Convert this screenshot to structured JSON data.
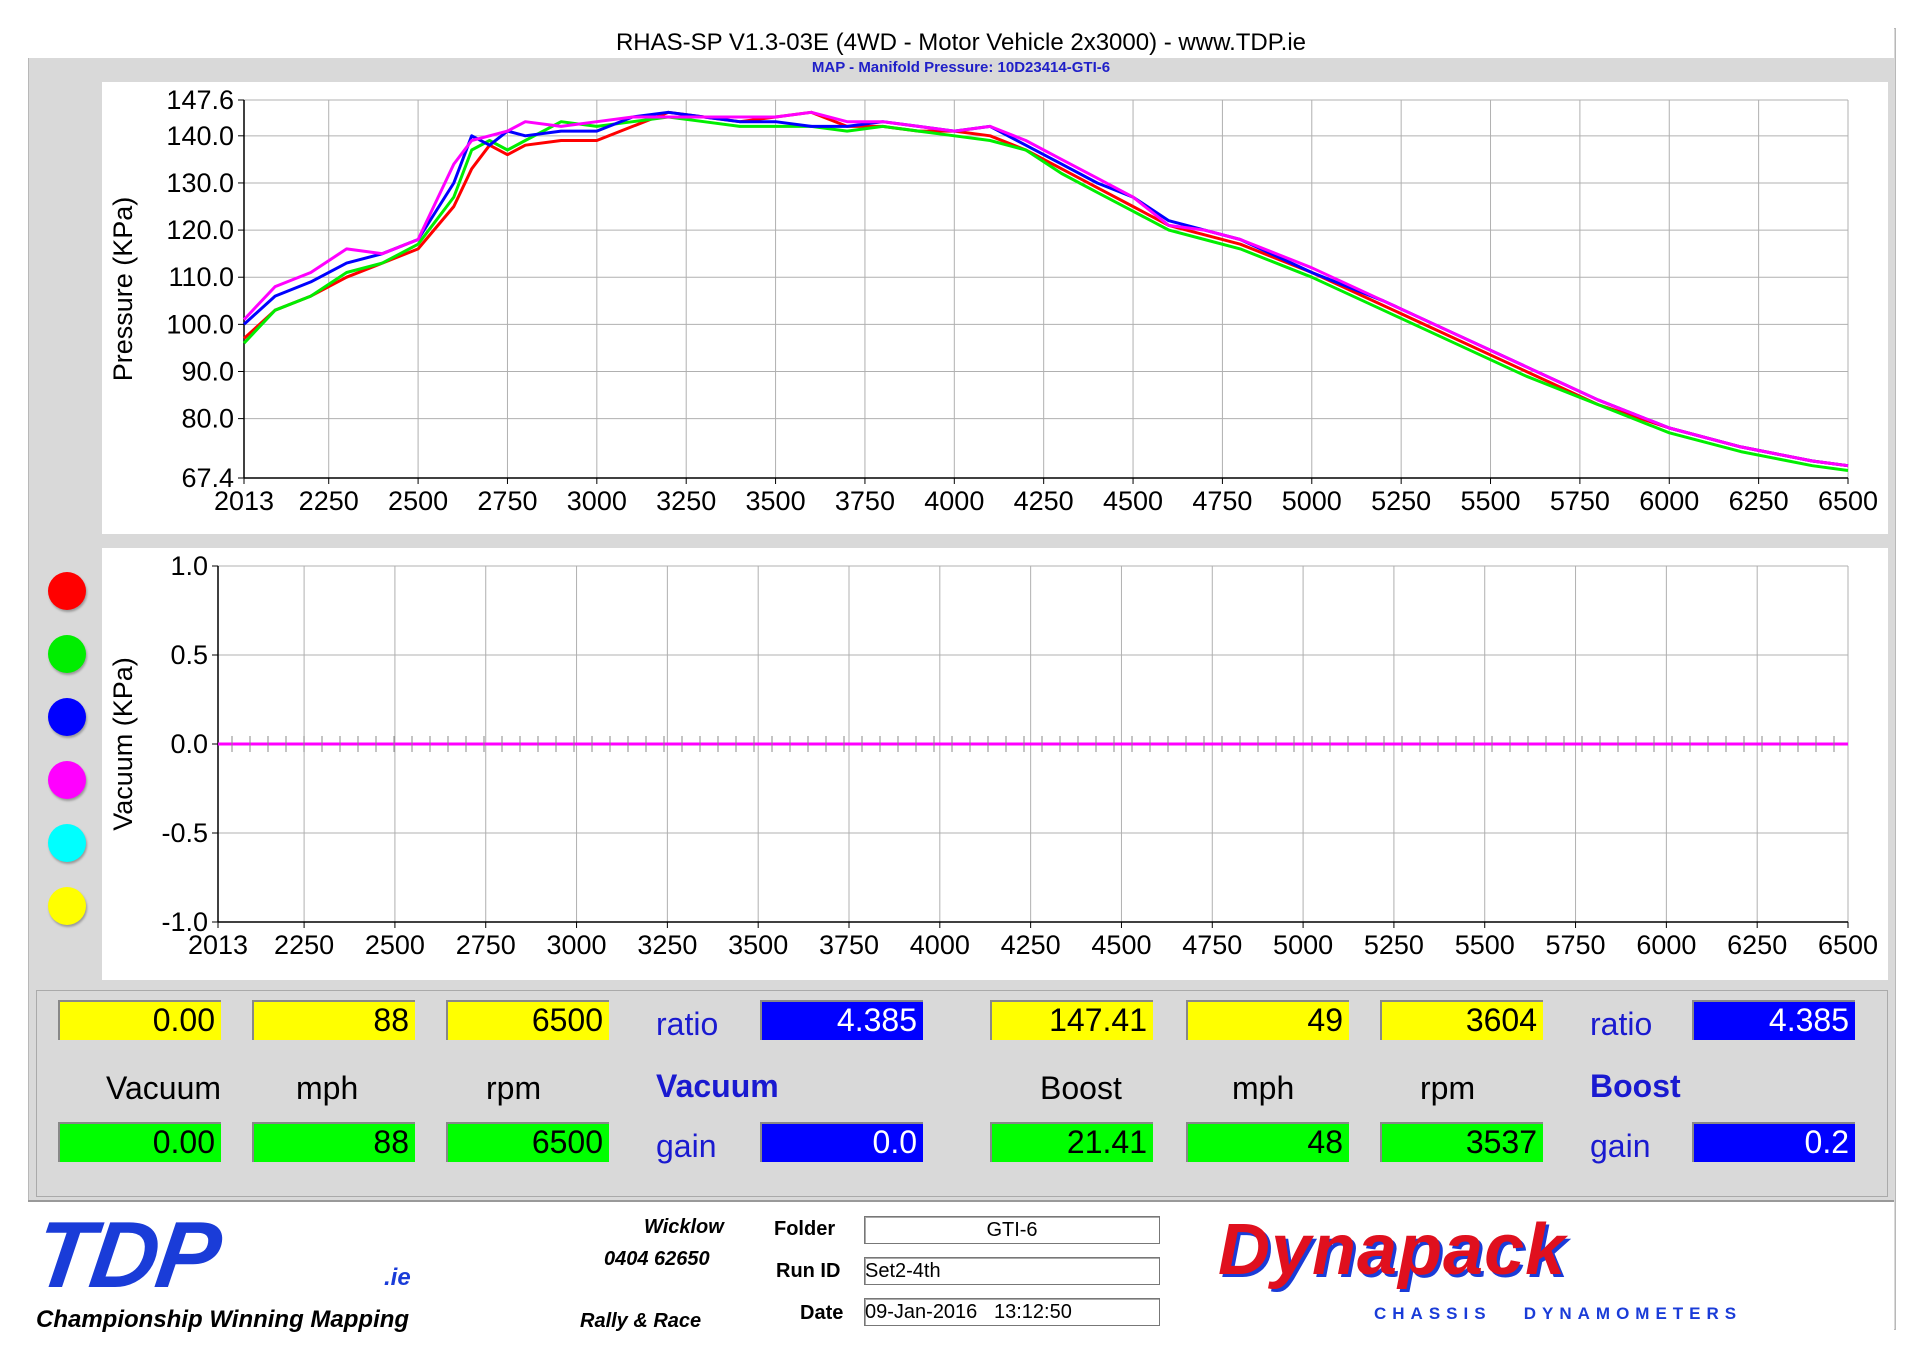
{
  "header": {
    "title": "RHAS-SP V1.3-03E  (4WD - Motor Vehicle 2x3000) - www.TDP.ie",
    "subtitle": "MAP - Manifold Pressure: 10D23414-GTI-6"
  },
  "chart_data": [
    {
      "type": "line",
      "ylabel": "Pressure (KPa)",
      "xlim": [
        2013,
        6500
      ],
      "ylim": [
        67.4,
        147.6
      ],
      "x_ticks": [
        "2013",
        "2250",
        "2500",
        "2750",
        "3000",
        "3250",
        "3500",
        "3750",
        "4000",
        "4250",
        "4500",
        "4750",
        "5000",
        "5250",
        "5500",
        "5750",
        "6000",
        "6250",
        "6500"
      ],
      "y_ticks": [
        "67.4",
        "80.0",
        "90.0",
        "100.0",
        "110.0",
        "120.0",
        "130.0",
        "140.0",
        "147.6"
      ],
      "x": [
        2013,
        2100,
        2200,
        2300,
        2400,
        2500,
        2600,
        2650,
        2700,
        2750,
        2800,
        2900,
        3000,
        3100,
        3200,
        3300,
        3400,
        3500,
        3600,
        3700,
        3800,
        3900,
        4000,
        4100,
        4200,
        4300,
        4400,
        4500,
        4600,
        4700,
        4800,
        5000,
        5200,
        5400,
        5600,
        5800,
        6000,
        6200,
        6400,
        6500
      ],
      "series": [
        {
          "color": "#ff0000",
          "values": [
            97,
            103,
            106,
            110,
            113,
            116,
            125,
            133,
            138,
            136,
            138,
            139,
            139,
            142,
            145,
            144,
            143,
            144,
            145,
            142,
            142,
            141,
            141,
            140,
            137,
            133,
            129,
            125,
            121,
            119,
            117,
            111,
            104,
            97,
            90,
            83,
            78,
            74,
            71,
            70
          ]
        },
        {
          "color": "#00ee00",
          "values": [
            96,
            103,
            106,
            111,
            113,
            117,
            127,
            137,
            139,
            137,
            139,
            143,
            142,
            143,
            144,
            143,
            142,
            142,
            142,
            141,
            142,
            141,
            140,
            139,
            137,
            132,
            128,
            124,
            120,
            118,
            116,
            110,
            103,
            96,
            89,
            83,
            77,
            73,
            70,
            69
          ]
        },
        {
          "color": "#0000ff",
          "values": [
            100,
            106,
            109,
            113,
            115,
            118,
            130,
            140,
            138,
            141,
            140,
            141,
            141,
            144,
            145,
            144,
            143,
            143,
            142,
            142,
            143,
            142,
            141,
            142,
            138,
            134,
            130,
            127,
            122,
            120,
            118,
            111,
            105,
            98,
            91,
            84,
            78,
            74,
            71,
            70
          ]
        },
        {
          "color": "#ff00ff",
          "values": [
            101,
            108,
            111,
            116,
            115,
            118,
            134,
            139,
            140,
            141,
            143,
            142,
            143,
            144,
            144,
            144,
            144,
            144,
            145,
            143,
            143,
            142,
            141,
            142,
            139,
            135,
            131,
            127,
            121,
            120,
            118,
            112,
            105,
            98,
            91,
            84,
            78,
            74,
            71,
            70
          ]
        }
      ]
    },
    {
      "type": "line",
      "ylabel": "Vacuum (KPa)",
      "xlim": [
        2013,
        6500
      ],
      "ylim": [
        -1.0,
        1.0
      ],
      "x_ticks": [
        "2013",
        "2250",
        "2500",
        "2750",
        "3000",
        "3250",
        "3500",
        "3750",
        "4000",
        "4250",
        "4500",
        "4750",
        "5000",
        "5250",
        "5500",
        "5750",
        "6000",
        "6250",
        "6500"
      ],
      "y_ticks": [
        "1.0",
        "0.5",
        "0.0",
        "-0.5",
        "-1.0"
      ],
      "x": [
        2013,
        6500
      ],
      "series": [
        {
          "color": "#ff00ff",
          "values": [
            0.0,
            0.0
          ]
        }
      ]
    }
  ],
  "legend": {
    "colors": [
      "#ff0000",
      "#00ee00",
      "#0000ff",
      "#ff00ff",
      "#00ffff",
      "#ffff00"
    ]
  },
  "readouts": {
    "left": {
      "top_values": [
        "0.00",
        "88",
        "6500"
      ],
      "bottom_values": [
        "0.00",
        "88",
        "6500"
      ],
      "labels": [
        "Vacuum",
        "mph",
        "rpm"
      ],
      "ratio_label": "ratio",
      "ratio_value": "4.385",
      "section_label": "Vacuum",
      "gain_label": "gain",
      "gain_value": "0.0"
    },
    "right": {
      "top_values": [
        "147.41",
        "49",
        "3604"
      ],
      "bottom_values": [
        "21.41",
        "48",
        "3537"
      ],
      "labels": [
        "Boost",
        "mph",
        "rpm"
      ],
      "ratio_label": "ratio",
      "ratio_value": "4.385",
      "section_label": "Boost",
      "gain_label": "gain",
      "gain_value": "0.2"
    }
  },
  "footer": {
    "logo_text": "TDP",
    "logo_suffix": ".ie",
    "tagline": "Championship Winning Mapping",
    "location": "Wicklow",
    "phone": "0404 62650",
    "rally": "Rally & Race",
    "folder_label": "Folder",
    "folder_value": "GTI-6",
    "runid_label": "Run ID",
    "runid_value": "Set2-4th",
    "date_label": "Date",
    "date_value": "09-Jan-2016   13:12:50",
    "brand": "Dynapack",
    "brand_sub": "CHASSIS   DYNAMOMETERS"
  }
}
